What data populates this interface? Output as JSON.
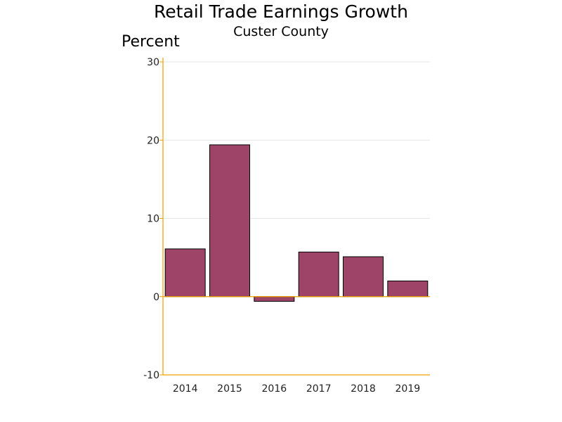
{
  "chart_data": {
    "type": "bar",
    "title": "Retail Trade Earnings Growth",
    "subtitle": "Custer County",
    "ylabel": "Percent",
    "xlabel": "",
    "categories": [
      "2014",
      "2015",
      "2016",
      "2017",
      "2018",
      "2019"
    ],
    "values": [
      6.1,
      19.4,
      -0.6,
      5.7,
      5.1,
      2.0
    ],
    "ylim": [
      -10,
      30
    ],
    "yticks": [
      -10,
      0,
      10,
      20,
      30
    ],
    "grid": true,
    "legend": "none",
    "colors": {
      "bar_fill": "#9e4468",
      "bar_stroke": "#000000",
      "axis": "#f0a000",
      "grid": "#e6e6e6"
    }
  }
}
